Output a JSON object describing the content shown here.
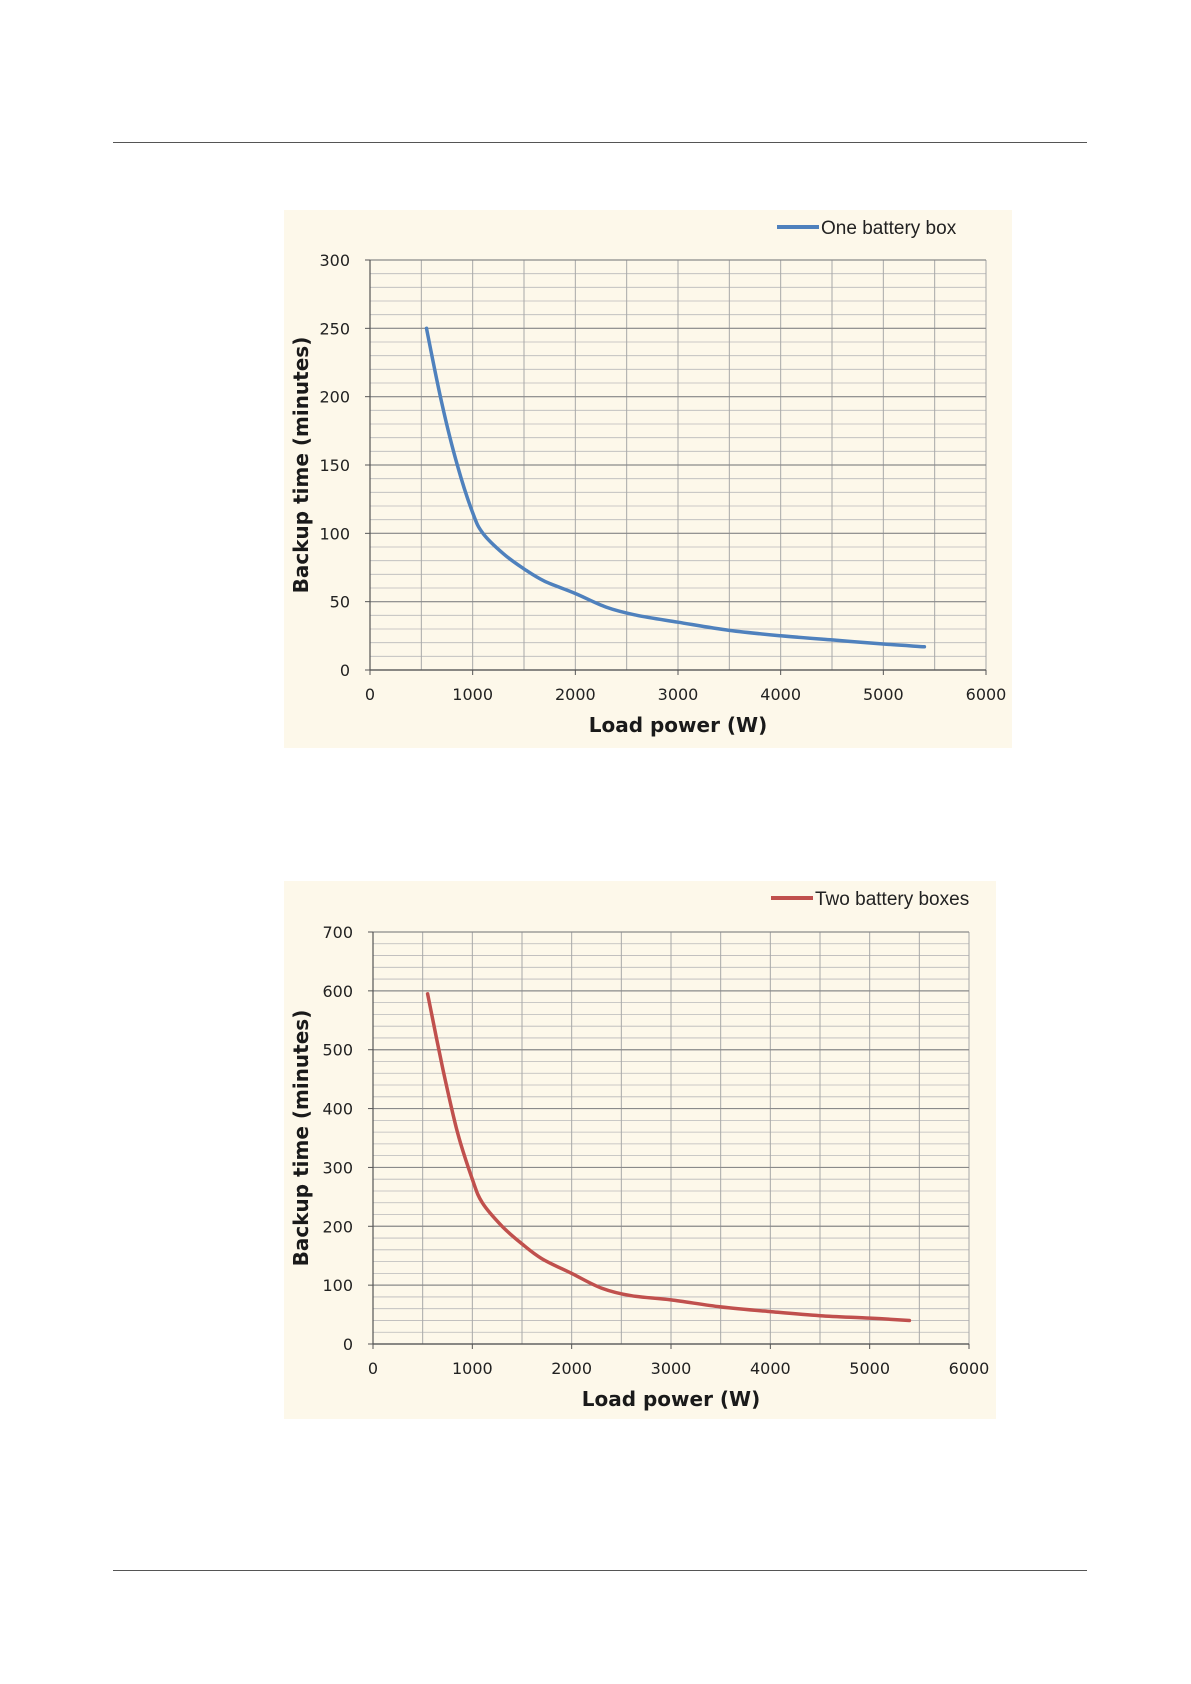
{
  "chart_data": [
    {
      "type": "line",
      "xlabel": "Load power (W)",
      "ylabel": "Backup time (minutes)",
      "xlim": [
        0,
        6000
      ],
      "ylim": [
        0,
        300
      ],
      "x_ticks": [
        "0",
        "1000",
        "2000",
        "3000",
        "4000",
        "5000",
        "6000"
      ],
      "y_ticks": [
        "0",
        "50",
        "100",
        "150",
        "200",
        "250",
        "300"
      ],
      "y_minor_step": 10,
      "x_major_step": 500,
      "grid": true,
      "legend_position": "top-right",
      "series": [
        {
          "name": "One battery box",
          "color": "#4f81bd",
          "x": [
            550,
            700,
            850,
            1000,
            1100,
            1300,
            1500,
            1700,
            2000,
            2300,
            2600,
            3000,
            3500,
            4000,
            4500,
            5000,
            5400
          ],
          "y": [
            250,
            195,
            150,
            115,
            100,
            85,
            74,
            65,
            56,
            46,
            40,
            35,
            29,
            25,
            22,
            19,
            17
          ]
        }
      ]
    },
    {
      "type": "line",
      "xlabel": "Load power (W)",
      "ylabel": "Backup time (minutes)",
      "xlim": [
        0,
        6000
      ],
      "ylim": [
        0,
        700
      ],
      "x_ticks": [
        "0",
        "1000",
        "2000",
        "3000",
        "4000",
        "5000",
        "6000"
      ],
      "y_ticks": [
        "0",
        "100",
        "200",
        "300",
        "400",
        "500",
        "600",
        "700"
      ],
      "y_minor_step": 20,
      "x_major_step": 500,
      "grid": true,
      "legend_position": "top-right",
      "series": [
        {
          "name": "Two battery boxes",
          "color": "#c0504d",
          "x": [
            550,
            700,
            850,
            1000,
            1100,
            1300,
            1500,
            1700,
            2000,
            2300,
            2600,
            3000,
            3500,
            4000,
            4500,
            5000,
            5400
          ],
          "y": [
            595,
            470,
            360,
            280,
            240,
            200,
            170,
            145,
            120,
            95,
            82,
            75,
            63,
            55,
            48,
            44,
            40
          ]
        }
      ]
    }
  ]
}
